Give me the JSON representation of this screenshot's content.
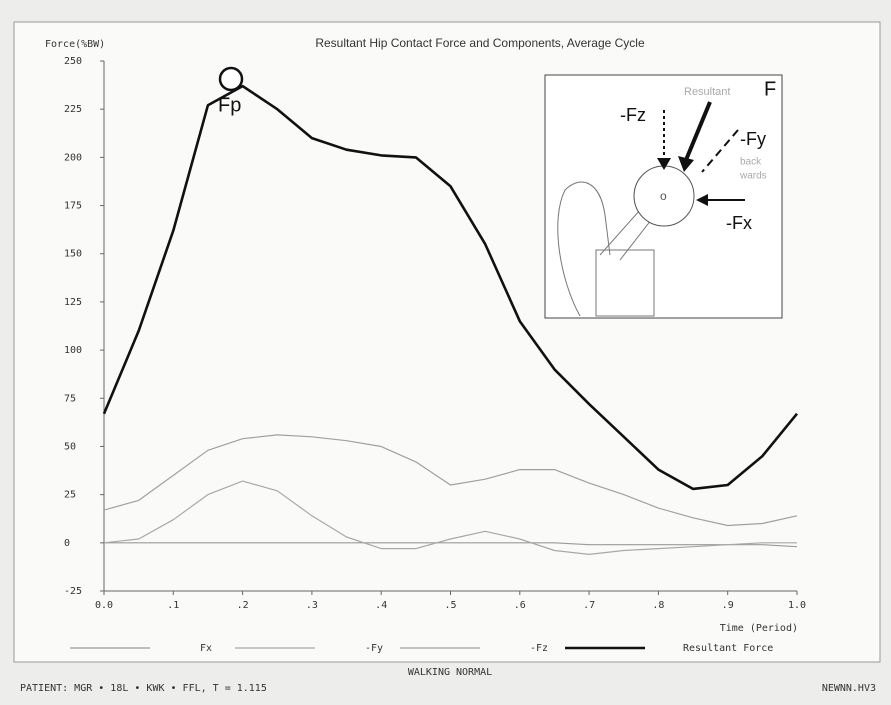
{
  "chart_data": {
    "type": "line",
    "title": "Resultant Hip Contact Force and Components,  Average Cycle",
    "y_label": "Force(%BW)",
    "x_label": "Time (Period)",
    "annotation": "Fp",
    "inset_labels": [
      "-Fz",
      "Resultant",
      "F",
      "-Fy",
      "back",
      "wards",
      "-Fx",
      "o"
    ],
    "footer_center": "WALKING NORMAL",
    "footer_left": "PATIENT: MGR • 18L • KWK • FFL, T = 1.115",
    "footer_right": "NEWNN.HV3",
    "x": [
      0,
      0.05,
      0.1,
      0.15,
      0.2,
      0.25,
      0.3,
      0.35,
      0.4,
      0.45,
      0.5,
      0.55,
      0.6,
      0.65,
      0.7,
      0.75,
      0.8,
      0.85,
      0.9,
      0.95,
      1.0
    ],
    "series": [
      {
        "name": "Fx",
        "color": "#9a9a9a",
        "width": 1.2,
        "values": [
          0,
          0,
          0,
          0,
          0,
          0,
          0,
          0,
          0,
          0,
          0,
          0,
          0,
          0,
          -1,
          -1,
          -1,
          -1,
          -1,
          -1,
          -2
        ]
      },
      {
        "name": "-Fy",
        "color": "#a8a8a8",
        "width": 1.2,
        "values": [
          0,
          2,
          12,
          25,
          32,
          27,
          14,
          3,
          -3,
          -3,
          2,
          6,
          2,
          -4,
          -6,
          -4,
          -3,
          -2,
          -1,
          0,
          0
        ]
      },
      {
        "name": "-Fz",
        "color": "#a0a0a0",
        "width": 1.2,
        "values": [
          17,
          22,
          35,
          48,
          54,
          56,
          55,
          53,
          50,
          42,
          30,
          33,
          38,
          38,
          31,
          25,
          18,
          13,
          9,
          10,
          14
        ]
      },
      {
        "name": "Resultant Force",
        "color": "#111111",
        "width": 2.6,
        "values": [
          67,
          110,
          162,
          227,
          237,
          225,
          210,
          204,
          201,
          200,
          185,
          155,
          115,
          90,
          72,
          55,
          38,
          28,
          30,
          45,
          67
        ]
      }
    ],
    "xlim": [
      0,
      1.0
    ],
    "ylim": [
      -25,
      250
    ],
    "xticks": [
      {
        "value": 0,
        "label": "0.0"
      },
      {
        "value": 0.1,
        "label": ".1"
      },
      {
        "value": 0.2,
        "label": ".2"
      },
      {
        "value": 0.3,
        "label": ".3"
      },
      {
        "value": 0.4,
        "label": ".4"
      },
      {
        "value": 0.5,
        "label": ".5"
      },
      {
        "value": 0.6,
        "label": ".6"
      },
      {
        "value": 0.7,
        "label": ".7"
      },
      {
        "value": 0.8,
        "label": ".8"
      },
      {
        "value": 0.9,
        "label": ".9"
      },
      {
        "value": 1.0,
        "label": "1.0"
      }
    ],
    "yticks": [
      -25,
      0,
      25,
      50,
      75,
      100,
      125,
      150,
      175,
      200,
      225,
      250
    ],
    "grid": false
  }
}
